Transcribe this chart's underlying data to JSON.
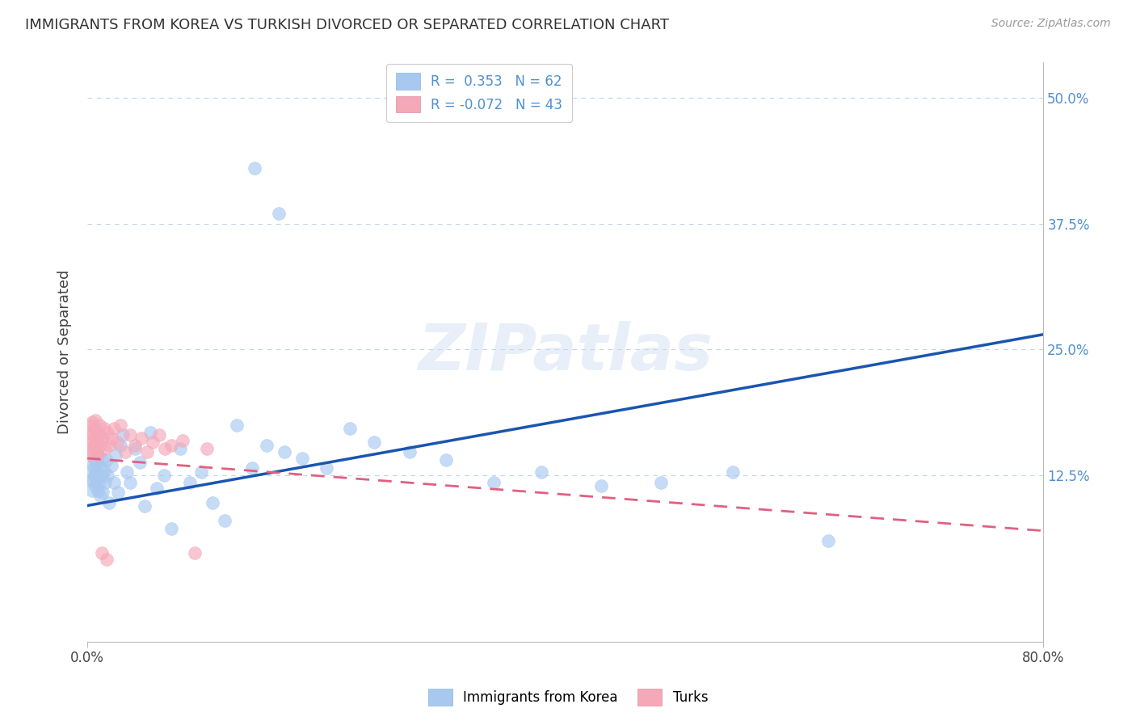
{
  "title": "IMMIGRANTS FROM KOREA VS TURKISH DIVORCED OR SEPARATED CORRELATION CHART",
  "source": "Source: ZipAtlas.com",
  "ylabel": "Divorced or Separated",
  "y_tick_positions": [
    0.0,
    0.125,
    0.25,
    0.375,
    0.5
  ],
  "y_tick_labels": [
    "",
    "12.5%",
    "25.0%",
    "37.5%",
    "50.0%"
  ],
  "x_lim": [
    0.0,
    0.8
  ],
  "y_lim": [
    -0.04,
    0.535
  ],
  "x_tick_positions": [
    0.0,
    0.8
  ],
  "x_tick_labels": [
    "0.0%",
    "80.0%"
  ],
  "legend_korea_R": "0.353",
  "legend_korea_N": "62",
  "legend_turks_R": "-0.072",
  "legend_turks_N": "43",
  "korea_color": "#a8c8f0",
  "turks_color": "#f5a8b8",
  "korea_line_color": "#1a55b0",
  "turks_line_color": "#e06080",
  "background_color": "#ffffff",
  "grid_color": "#c0d4e8",
  "watermark": "ZIPatlas",
  "korea_line_x": [
    0.0,
    0.8
  ],
  "korea_line_y": [
    0.095,
    0.265
  ],
  "turks_line_x": [
    0.0,
    0.8
  ],
  "turks_line_y": [
    0.142,
    0.07
  ],
  "korea_scatter_x": [
    0.002,
    0.003,
    0.004,
    0.005,
    0.005,
    0.006,
    0.006,
    0.007,
    0.007,
    0.008,
    0.008,
    0.009,
    0.009,
    0.01,
    0.01,
    0.011,
    0.012,
    0.012,
    0.013,
    0.014,
    0.015,
    0.016,
    0.017,
    0.018,
    0.02,
    0.022,
    0.024,
    0.026,
    0.028,
    0.03,
    0.033,
    0.036,
    0.04,
    0.044,
    0.048,
    0.053,
    0.058,
    0.064,
    0.07,
    0.078,
    0.086,
    0.095,
    0.105,
    0.115,
    0.125,
    0.138,
    0.15,
    0.165,
    0.18,
    0.2,
    0.22,
    0.24,
    0.27,
    0.3,
    0.34,
    0.38,
    0.43,
    0.48,
    0.54,
    0.62,
    0.14,
    0.16
  ],
  "korea_scatter_y": [
    0.12,
    0.13,
    0.11,
    0.12,
    0.135,
    0.125,
    0.14,
    0.115,
    0.13,
    0.12,
    0.138,
    0.11,
    0.145,
    0.118,
    0.135,
    0.105,
    0.125,
    0.142,
    0.108,
    0.13,
    0.118,
    0.14,
    0.125,
    0.098,
    0.135,
    0.118,
    0.145,
    0.108,
    0.155,
    0.165,
    0.128,
    0.118,
    0.152,
    0.138,
    0.095,
    0.168,
    0.112,
    0.125,
    0.072,
    0.152,
    0.118,
    0.128,
    0.098,
    0.08,
    0.175,
    0.132,
    0.155,
    0.148,
    0.142,
    0.132,
    0.172,
    0.158,
    0.148,
    0.14,
    0.118,
    0.128,
    0.115,
    0.118,
    0.128,
    0.06,
    0.43,
    0.385
  ],
  "turks_scatter_x": [
    0.001,
    0.002,
    0.002,
    0.003,
    0.003,
    0.004,
    0.004,
    0.005,
    0.005,
    0.006,
    0.006,
    0.007,
    0.007,
    0.008,
    0.008,
    0.009,
    0.009,
    0.01,
    0.01,
    0.011,
    0.012,
    0.013,
    0.014,
    0.015,
    0.016,
    0.017,
    0.018,
    0.02,
    0.022,
    0.025,
    0.028,
    0.032,
    0.036,
    0.04,
    0.045,
    0.05,
    0.055,
    0.06,
    0.065,
    0.07,
    0.08,
    0.09,
    0.1
  ],
  "turks_scatter_y": [
    0.145,
    0.158,
    0.168,
    0.152,
    0.175,
    0.16,
    0.178,
    0.148,
    0.165,
    0.155,
    0.172,
    0.162,
    0.18,
    0.148,
    0.168,
    0.158,
    0.145,
    0.165,
    0.175,
    0.155,
    0.048,
    0.162,
    0.172,
    0.152,
    0.042,
    0.168,
    0.155,
    0.162,
    0.172,
    0.158,
    0.175,
    0.148,
    0.165,
    0.155,
    0.162,
    0.148,
    0.158,
    0.165,
    0.152,
    0.155,
    0.16,
    0.048,
    0.152
  ]
}
